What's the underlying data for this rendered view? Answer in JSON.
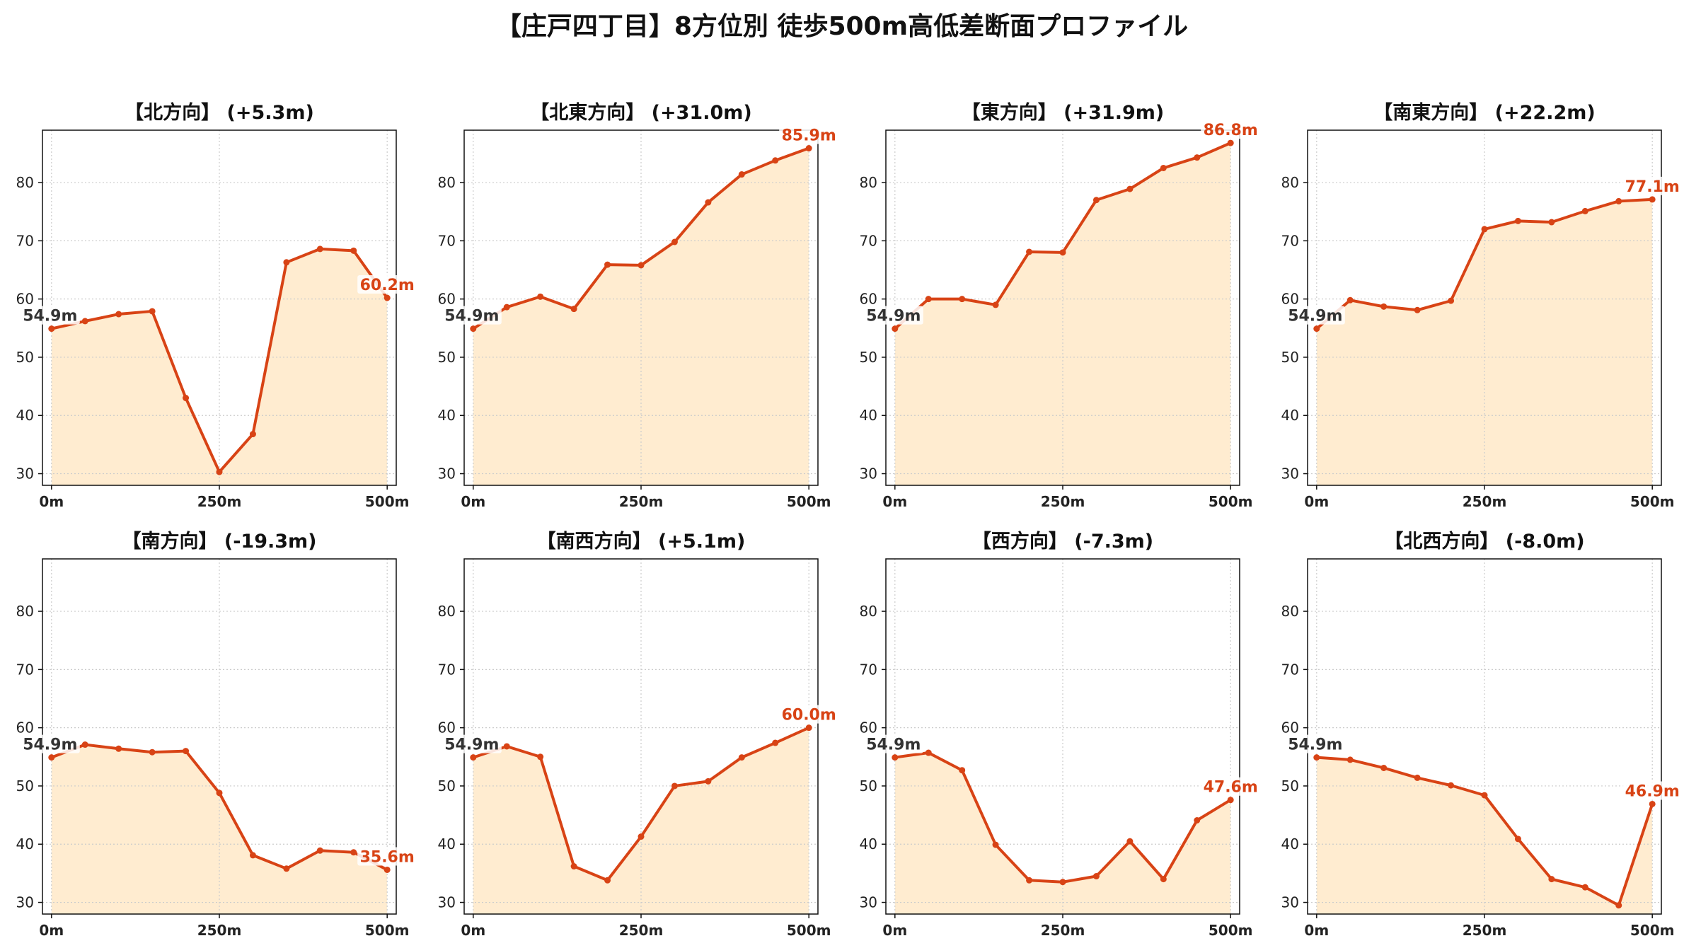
{
  "title": "【庄戸四丁目】8方位別 徒歩500m高低差断面プロファイル",
  "colors": {
    "line": "#d84315",
    "fill": "#ffecd0",
    "start_label": "#333333",
    "end_label": "#d84315",
    "grid": "#cccccc"
  },
  "chart_data": [
    {
      "type": "area",
      "title": "【北方向】 (+5.3m)",
      "x": [
        0,
        50,
        100,
        150,
        200,
        250,
        300,
        350,
        400,
        450,
        500
      ],
      "xticks": [
        "0m",
        "250m",
        "500m"
      ],
      "ylim": [
        28,
        89
      ],
      "yticks": [
        30,
        40,
        50,
        60,
        70,
        80
      ],
      "values": [
        54.9,
        56.2,
        57.4,
        57.9,
        43.0,
        30.3,
        36.8,
        66.3,
        68.6,
        68.3,
        60.2
      ],
      "start_label": "54.9m",
      "end_label": "60.2m"
    },
    {
      "type": "area",
      "title": "【北東方向】 (+31.0m)",
      "x": [
        0,
        50,
        100,
        150,
        200,
        250,
        300,
        350,
        400,
        450,
        500
      ],
      "xticks": [
        "0m",
        "250m",
        "500m"
      ],
      "ylim": [
        28,
        89
      ],
      "yticks": [
        30,
        40,
        50,
        60,
        70,
        80
      ],
      "values": [
        54.9,
        58.6,
        60.4,
        58.3,
        65.9,
        65.8,
        69.8,
        76.6,
        81.4,
        83.8,
        85.9
      ],
      "start_label": "54.9m",
      "end_label": "85.9m"
    },
    {
      "type": "area",
      "title": "【東方向】 (+31.9m)",
      "x": [
        0,
        50,
        100,
        150,
        200,
        250,
        300,
        350,
        400,
        450,
        500
      ],
      "xticks": [
        "0m",
        "250m",
        "500m"
      ],
      "ylim": [
        28,
        89
      ],
      "yticks": [
        30,
        40,
        50,
        60,
        70,
        80
      ],
      "values": [
        54.9,
        60.0,
        60.0,
        59.0,
        68.1,
        68.0,
        77.0,
        78.9,
        82.5,
        84.3,
        86.8
      ],
      "start_label": "54.9m",
      "end_label": "86.8m"
    },
    {
      "type": "area",
      "title": "【南東方向】 (+22.2m)",
      "x": [
        0,
        50,
        100,
        150,
        200,
        250,
        300,
        350,
        400,
        450,
        500
      ],
      "xticks": [
        "0m",
        "250m",
        "500m"
      ],
      "ylim": [
        28,
        89
      ],
      "yticks": [
        30,
        40,
        50,
        60,
        70,
        80
      ],
      "values": [
        54.9,
        59.8,
        58.7,
        58.1,
        59.7,
        72.0,
        73.4,
        73.2,
        75.1,
        76.8,
        77.1
      ],
      "start_label": "54.9m",
      "end_label": "77.1m"
    },
    {
      "type": "area",
      "title": "【南方向】 (-19.3m)",
      "x": [
        0,
        50,
        100,
        150,
        200,
        250,
        300,
        350,
        400,
        450,
        500
      ],
      "xticks": [
        "0m",
        "250m",
        "500m"
      ],
      "ylim": [
        28,
        89
      ],
      "yticks": [
        30,
        40,
        50,
        60,
        70,
        80
      ],
      "values": [
        54.9,
        57.1,
        56.4,
        55.8,
        56.0,
        48.8,
        38.1,
        35.8,
        38.9,
        38.6,
        35.6
      ],
      "start_label": "54.9m",
      "end_label": "35.6m"
    },
    {
      "type": "area",
      "title": "【南西方向】 (+5.1m)",
      "x": [
        0,
        50,
        100,
        150,
        200,
        250,
        300,
        350,
        400,
        450,
        500
      ],
      "xticks": [
        "0m",
        "250m",
        "500m"
      ],
      "ylim": [
        28,
        89
      ],
      "yticks": [
        30,
        40,
        50,
        60,
        70,
        80
      ],
      "values": [
        54.9,
        56.8,
        55.0,
        36.2,
        33.8,
        41.3,
        50.0,
        50.8,
        54.9,
        57.4,
        60.0
      ],
      "start_label": "54.9m",
      "end_label": "60.0m"
    },
    {
      "type": "area",
      "title": "【西方向】 (-7.3m)",
      "x": [
        0,
        50,
        100,
        150,
        200,
        250,
        300,
        350,
        400,
        450,
        500
      ],
      "xticks": [
        "0m",
        "250m",
        "500m"
      ],
      "ylim": [
        28,
        89
      ],
      "yticks": [
        30,
        40,
        50,
        60,
        70,
        80
      ],
      "values": [
        54.9,
        55.7,
        52.7,
        39.9,
        33.8,
        33.5,
        34.5,
        40.5,
        34.0,
        44.1,
        47.6
      ],
      "start_label": "54.9m",
      "end_label": "47.6m"
    },
    {
      "type": "area",
      "title": "【北西方向】 (-8.0m)",
      "x": [
        0,
        50,
        100,
        150,
        200,
        250,
        300,
        350,
        400,
        450,
        500
      ],
      "xticks": [
        "0m",
        "250m",
        "500m"
      ],
      "ylim": [
        28,
        89
      ],
      "yticks": [
        30,
        40,
        50,
        60,
        70,
        80
      ],
      "values": [
        54.9,
        54.5,
        53.1,
        51.4,
        50.1,
        48.4,
        40.9,
        34.0,
        32.6,
        29.5,
        46.9
      ],
      "start_label": "54.9m",
      "end_label": "46.9m"
    }
  ]
}
